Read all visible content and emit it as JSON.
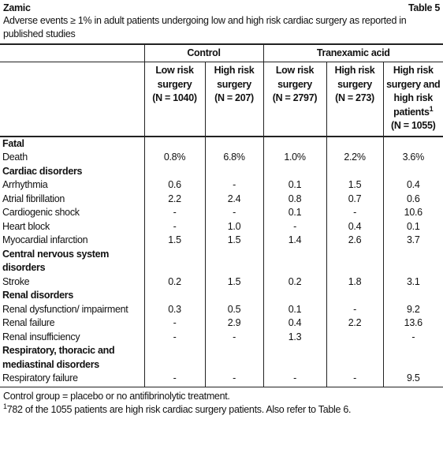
{
  "header": {
    "title": "Zamic",
    "table_label": "Table 5",
    "caption": "Adverse events ≥ 1% in adult patients undergoing low and high risk cardiac surgery as reported in published studies"
  },
  "table": {
    "groups": [
      {
        "label": "Control",
        "span": 2
      },
      {
        "label": "Tranexamic acid",
        "span": 3
      }
    ],
    "columns": [
      {
        "text": "Low risk surgery",
        "n": "(N = 1040)"
      },
      {
        "text": "High risk surgery",
        "n": "(N = 207)"
      },
      {
        "text": "Low risk surgery",
        "n": "(N = 2797)"
      },
      {
        "text": "High risk surgery",
        "n": "(N = 273)"
      },
      {
        "text": "High risk surgery and high risk patients",
        "note": "1",
        "n": "(N = 1055)"
      }
    ],
    "sections": [
      {
        "heading": "Fatal",
        "rows": [
          {
            "label": "Death",
            "values": [
              "0.8%",
              "6.8%",
              "1.0%",
              "2.2%",
              "3.6%"
            ]
          }
        ]
      },
      {
        "heading": "Cardiac disorders",
        "rows": [
          {
            "label": "Arrhythmia",
            "values": [
              "0.6",
              "-",
              "0.1",
              "1.5",
              "0.4"
            ]
          },
          {
            "label": "Atrial fibrillation",
            "values": [
              "2.2",
              "2.4",
              "0.8",
              "0.7",
              "0.6"
            ]
          },
          {
            "label": "Cardiogenic shock",
            "values": [
              "-",
              "-",
              "0.1",
              "-",
              "10.6"
            ]
          },
          {
            "label": "Heart block",
            "values": [
              "-",
              "1.0",
              "-",
              "0.4",
              "0.1"
            ]
          },
          {
            "label": "Myocardial infarction",
            "values": [
              "1.5",
              "1.5",
              "1.4",
              "2.6",
              "3.7"
            ]
          }
        ]
      },
      {
        "heading": "Central nervous system disorders",
        "rows": [
          {
            "label": "Stroke",
            "values": [
              "0.2",
              "1.5",
              "0.2",
              "1.8",
              "3.1"
            ]
          }
        ]
      },
      {
        "heading": "Renal disorders",
        "rows": [
          {
            "label": "Renal dysfunction/ impairment",
            "values": [
              "0.3",
              "0.5",
              "0.1",
              "-",
              "9.2"
            ]
          },
          {
            "label": "Renal failure",
            "values": [
              "-",
              "2.9",
              "0.4",
              "2.2",
              "13.6"
            ]
          },
          {
            "label": "Renal insufficiency",
            "values": [
              "-",
              "-",
              "1.3",
              "",
              "-"
            ]
          }
        ]
      },
      {
        "heading": "Respiratory, thoracic and mediastinal disorders",
        "rows": [
          {
            "label": "Respiratory failure",
            "values": [
              "-",
              "-",
              "-",
              "-",
              "9.5"
            ]
          }
        ]
      }
    ]
  },
  "footnotes": [
    {
      "text": "Control group = placebo or no antifibrinolytic treatment."
    },
    {
      "marker": "1",
      "text": "782 of the 1055 patients are high risk cardiac surgery patients. Also refer to Table 6."
    }
  ]
}
